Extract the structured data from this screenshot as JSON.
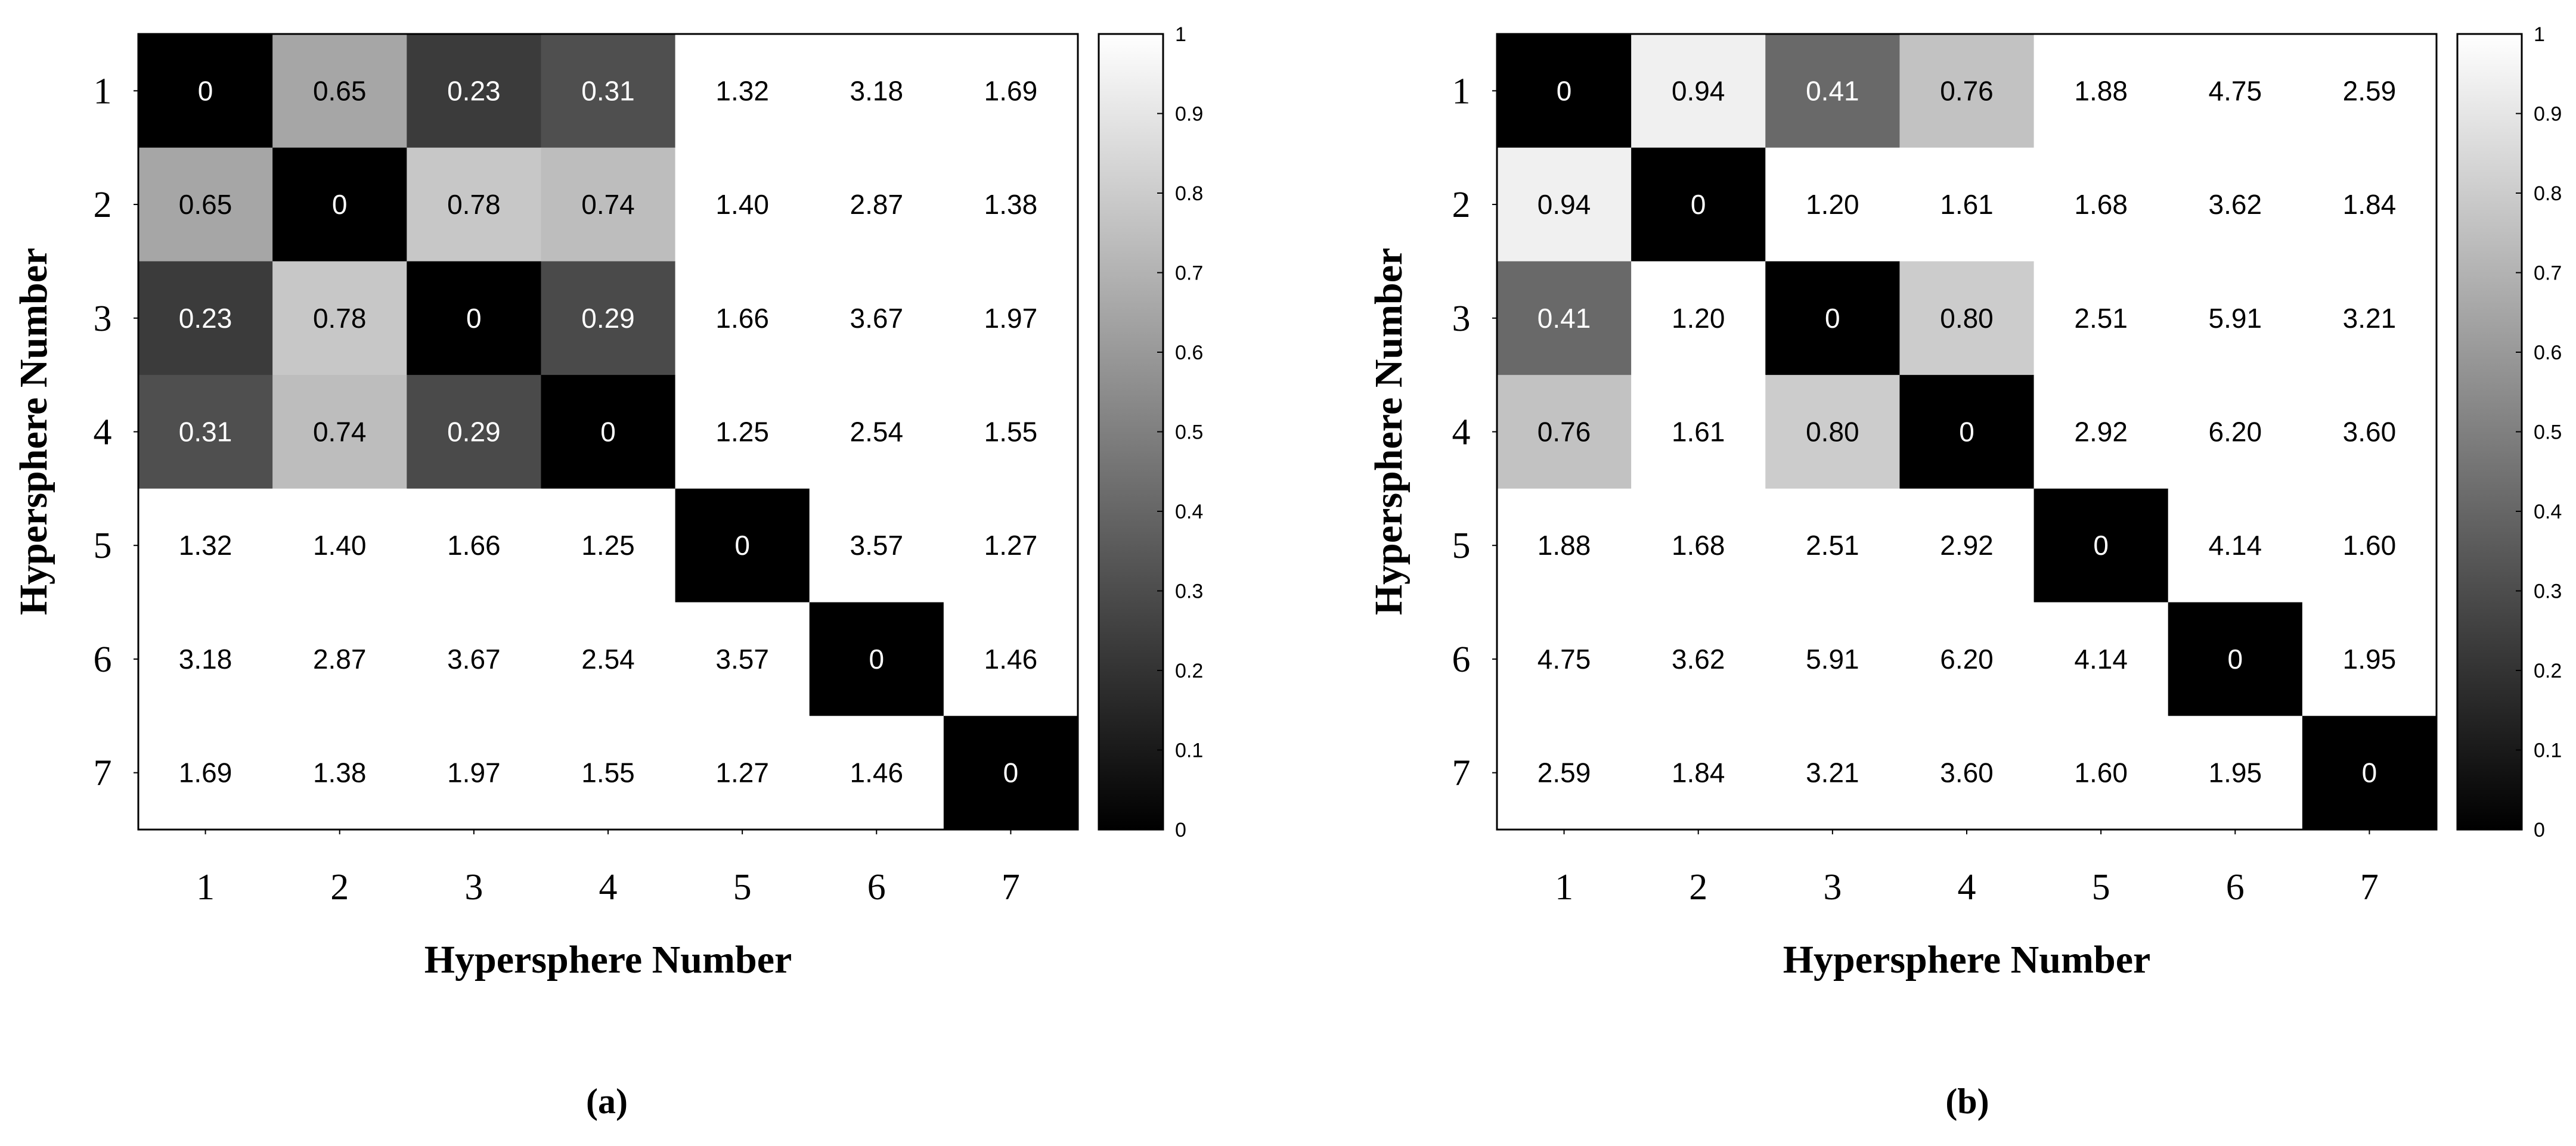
{
  "chart_data": [
    {
      "type": "heatmap",
      "panel_label": "(a)",
      "xlabel": "Hypersphere Number",
      "ylabel": "Hypersphere Number",
      "x_categories": [
        "1",
        "2",
        "3",
        "4",
        "5",
        "6",
        "7"
      ],
      "y_categories": [
        "1",
        "2",
        "3",
        "4",
        "5",
        "6",
        "7"
      ],
      "values": [
        [
          "0",
          "0.65",
          "0.23",
          "0.31",
          "1.32",
          "3.18",
          "1.69"
        ],
        [
          "0.65",
          "0",
          "0.78",
          "0.74",
          "1.40",
          "2.87",
          "1.38"
        ],
        [
          "0.23",
          "0.78",
          "0",
          "0.29",
          "1.66",
          "3.67",
          "1.97"
        ],
        [
          "0.31",
          "0.74",
          "0.29",
          "0",
          "1.25",
          "2.54",
          "1.55"
        ],
        [
          "1.32",
          "1.40",
          "1.66",
          "1.25",
          "0",
          "3.57",
          "1.27"
        ],
        [
          "3.18",
          "2.87",
          "3.67",
          "2.54",
          "3.57",
          "0",
          "1.46"
        ],
        [
          "1.69",
          "1.38",
          "1.97",
          "1.55",
          "1.27",
          "1.46",
          "0"
        ]
      ],
      "colorbar": {
        "range": [
          0,
          1
        ],
        "colormap": "black-to-white grayscale (values above 1 shown white)",
        "ticks": [
          "0",
          "0.1",
          "0.2",
          "0.3",
          "0.4",
          "0.5",
          "0.6",
          "0.7",
          "0.8",
          "0.9",
          "1"
        ],
        "placement": "right"
      }
    },
    {
      "type": "heatmap",
      "panel_label": "(b)",
      "xlabel": "Hypersphere Number",
      "ylabel": "Hypersphere Number",
      "x_categories": [
        "1",
        "2",
        "3",
        "4",
        "5",
        "6",
        "7"
      ],
      "y_categories": [
        "1",
        "2",
        "3",
        "4",
        "5",
        "6",
        "7"
      ],
      "values": [
        [
          "0",
          "0.94",
          "0.41",
          "0.76",
          "1.88",
          "4.75",
          "2.59"
        ],
        [
          "0.94",
          "0",
          "1.20",
          "1.61",
          "1.68",
          "3.62",
          "1.84"
        ],
        [
          "0.41",
          "1.20",
          "0",
          "0.80",
          "2.51",
          "5.91",
          "3.21"
        ],
        [
          "0.76",
          "1.61",
          "0.80",
          "0",
          "2.92",
          "6.20",
          "3.60"
        ],
        [
          "1.88",
          "1.68",
          "2.51",
          "2.92",
          "0",
          "4.14",
          "1.60"
        ],
        [
          "4.75",
          "3.62",
          "5.91",
          "6.20",
          "4.14",
          "0",
          "1.95"
        ],
        [
          "2.59",
          "1.84",
          "3.21",
          "3.60",
          "1.60",
          "1.95",
          "0"
        ]
      ],
      "colorbar": {
        "range": [
          0,
          1
        ],
        "colormap": "black-to-white grayscale (values above 1 shown white)",
        "ticks": [
          "0",
          "0.1",
          "0.2",
          "0.3",
          "0.4",
          "0.5",
          "0.6",
          "0.7",
          "0.8",
          "0.9",
          "1"
        ],
        "placement": "right"
      }
    }
  ]
}
